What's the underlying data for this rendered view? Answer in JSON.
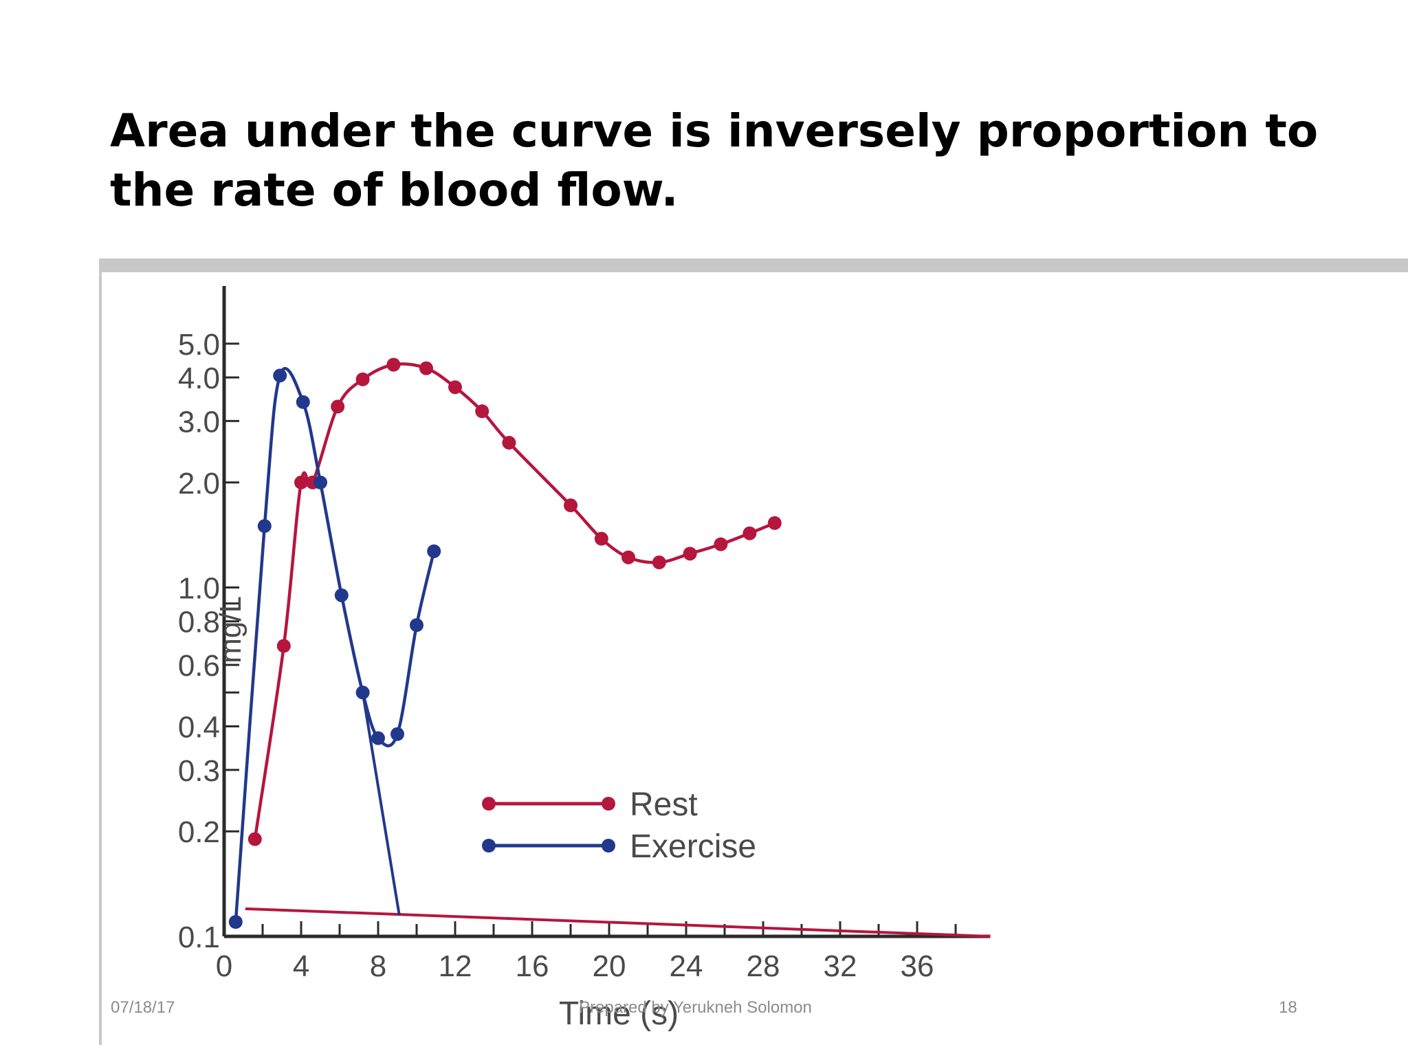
{
  "slide": {
    "title": "Area under the curve is inversely proportion to the rate of blood flow.",
    "footer": {
      "date": "07/18/17",
      "author": "Prepared by Yerukneh Solomon",
      "page": "18"
    }
  },
  "colors": {
    "rest": "#b5163e",
    "exercise": "#22388c",
    "axis": "#2b2b2b",
    "tick_text": "#4a4a4a"
  },
  "chart_data": {
    "type": "line",
    "xlabel": "Time (s)",
    "ylabel": "mg/L",
    "y_scale": "log",
    "xlim": [
      0,
      40
    ],
    "ylim": [
      0.1,
      6.5
    ],
    "x_ticks": [
      0,
      4,
      8,
      12,
      16,
      20,
      24,
      28,
      32,
      36
    ],
    "y_ticks": [
      0.1,
      0.2,
      0.3,
      0.4,
      0.6,
      0.8,
      1.0,
      2.0,
      3.0,
      4.0,
      5.0
    ],
    "y_tick_labels": [
      "0.1",
      "0.2",
      "0.3",
      "0.4",
      "0.6",
      "0.8",
      "1.0",
      "2.0",
      "3.0",
      "4.0",
      "5.0"
    ],
    "legend_position": "bottom-center",
    "series": [
      {
        "name": "Rest",
        "points": [
          [
            1.6,
            0.19
          ],
          [
            3.1,
            0.68
          ],
          [
            4.0,
            2.0
          ],
          [
            4.6,
            2.0
          ],
          [
            5.9,
            3.3
          ],
          [
            7.2,
            3.95
          ],
          [
            8.8,
            4.35
          ],
          [
            10.5,
            4.25
          ],
          [
            12.0,
            3.75
          ],
          [
            13.4,
            3.2
          ],
          [
            14.8,
            2.6
          ],
          [
            18.0,
            1.72
          ],
          [
            19.6,
            1.38
          ],
          [
            21.0,
            1.22
          ],
          [
            22.6,
            1.18
          ],
          [
            24.2,
            1.25
          ],
          [
            25.8,
            1.33
          ],
          [
            27.3,
            1.43
          ],
          [
            28.6,
            1.53
          ]
        ],
        "extrapolation": [
          [
            1.1,
            0.12
          ],
          [
            39.8,
            0.1
          ]
        ]
      },
      {
        "name": "Exercise",
        "points": [
          [
            0.6,
            0.11
          ],
          [
            2.1,
            1.5
          ],
          [
            2.9,
            4.05
          ],
          [
            4.1,
            3.4
          ],
          [
            5.0,
            2.0
          ],
          [
            6.1,
            0.95
          ],
          [
            7.2,
            0.5
          ],
          [
            8.0,
            0.37
          ],
          [
            9.0,
            0.38
          ],
          [
            10.0,
            0.78
          ],
          [
            10.9,
            1.27
          ]
        ],
        "extrapolation": [
          [
            7.2,
            0.5
          ],
          [
            9.1,
            0.115
          ]
        ]
      }
    ]
  }
}
